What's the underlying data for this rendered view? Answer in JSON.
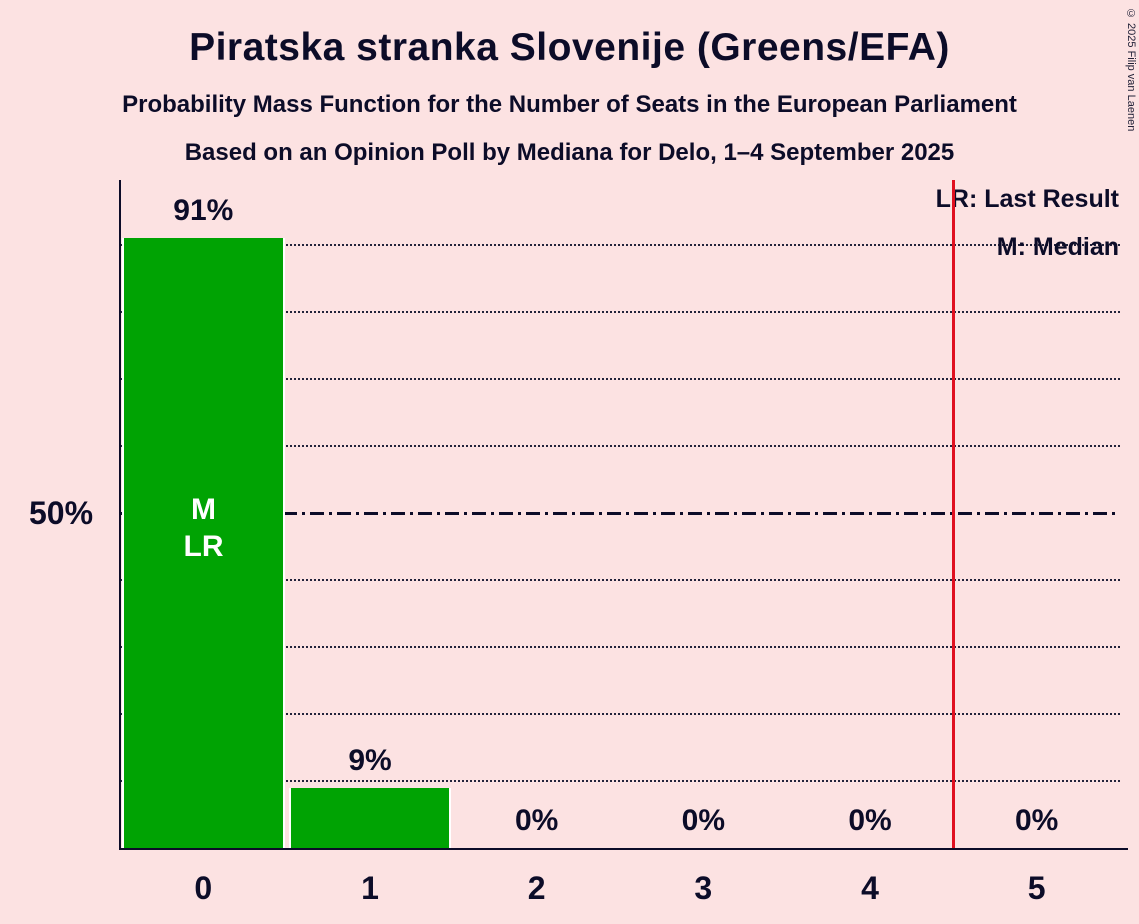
{
  "title": "Piratska stranka Slovenije (Greens/EFA)",
  "subtitle1": "Probability Mass Function for the Number of Seats in the European Parliament",
  "subtitle2": "Based on an Opinion Poll by Mediana for Delo, 1–4 September 2025",
  "copyright": "© 2025 Filip van Laenen",
  "legend": {
    "last_result": "LR: Last Result",
    "median": "M: Median"
  },
  "y_axis_label": "50%",
  "annotation": {
    "median": "M",
    "last_result": "LR"
  },
  "chart_data": {
    "type": "bar",
    "title": "Piratska stranka Slovenije (Greens/EFA)",
    "categories": [
      "0",
      "1",
      "2",
      "3",
      "4",
      "5"
    ],
    "values": [
      91,
      9,
      0,
      0,
      0,
      0
    ],
    "value_labels": [
      "91%",
      "9%",
      "0%",
      "0%",
      "0%",
      "0%"
    ],
    "xlabel": "",
    "ylabel": "",
    "ylim": [
      0,
      100
    ],
    "gridlines_pct": [
      10,
      20,
      30,
      40,
      50,
      60,
      70,
      80,
      90
    ],
    "solid_gridline_pct": 50,
    "red_line_at": 4.5,
    "median_seats": "0",
    "last_result_seats": "0",
    "legend_position": "top-right",
    "grid": "dotted-horizontal",
    "colors": {
      "bar": "#00a303",
      "background": "#fce2e2",
      "text": "#0c0c28",
      "red_line": "#e01020",
      "bar_text": "#ffffff"
    }
  }
}
